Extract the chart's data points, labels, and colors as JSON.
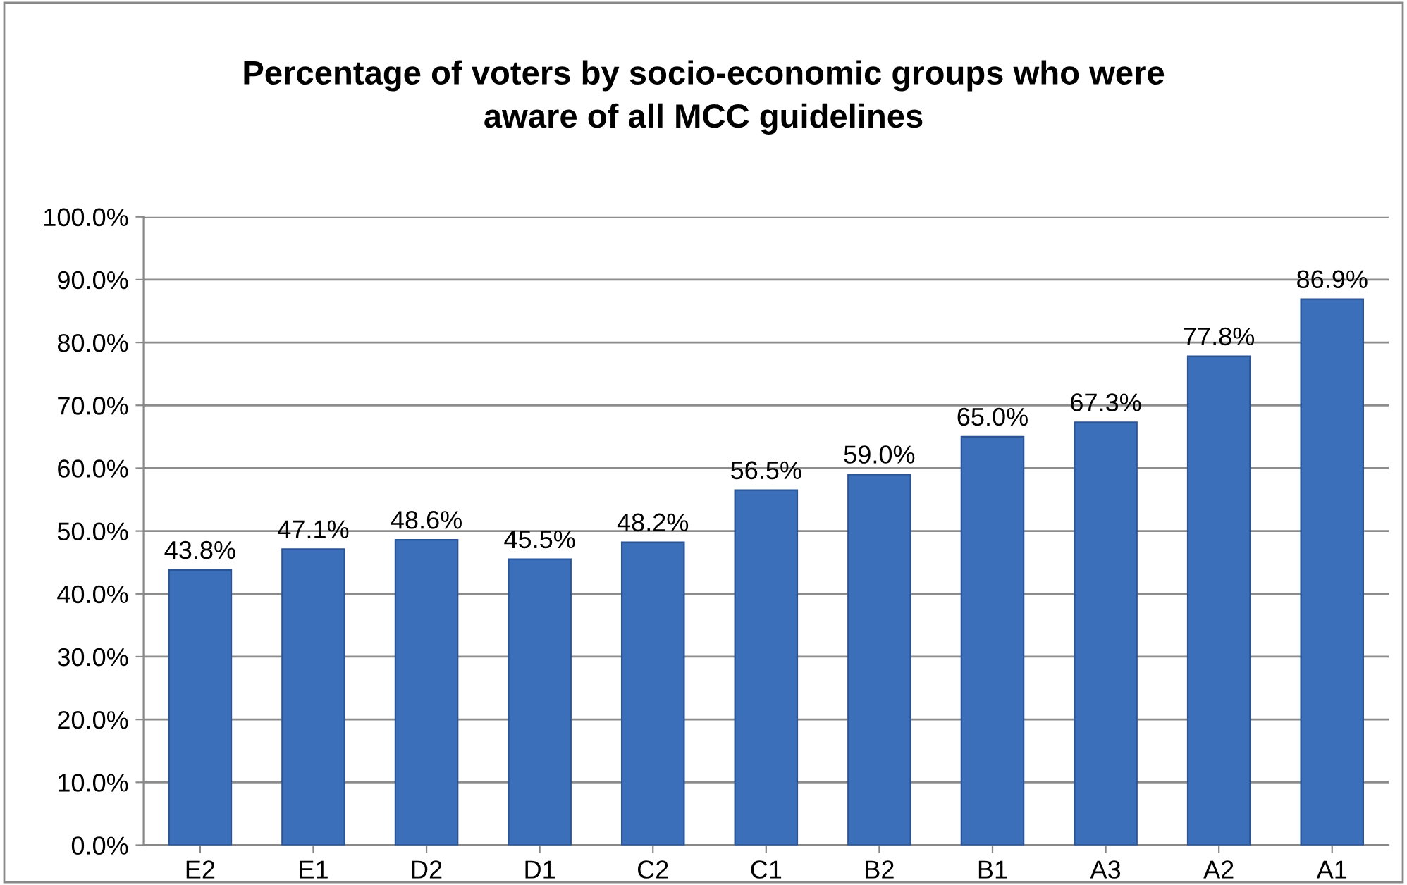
{
  "chart_data": {
    "type": "bar",
    "title": "Percentage of voters by socio-economic groups who were\naware of all MCC guidelines",
    "categories": [
      "E2",
      "E1",
      "D2",
      "D1",
      "C2",
      "C1",
      "B2",
      "B1",
      "A3",
      "A2",
      "A1"
    ],
    "values": [
      43.8,
      47.1,
      48.6,
      45.5,
      48.2,
      56.5,
      59.0,
      65.0,
      67.3,
      77.8,
      86.9
    ],
    "value_labels": [
      "43.8%",
      "47.1%",
      "48.6%",
      "45.5%",
      "48.2%",
      "56.5%",
      "59.0%",
      "65.0%",
      "67.3%",
      "77.8%",
      "86.9%"
    ],
    "color": "#3b6fba",
    "ylim": [
      0,
      100
    ],
    "yticks": [
      {
        "value": 0,
        "label": "0.0%"
      },
      {
        "value": 10,
        "label": "10.0%"
      },
      {
        "value": 20,
        "label": "20.0%"
      },
      {
        "value": 30,
        "label": "30.0%"
      },
      {
        "value": 40,
        "label": "40.0%"
      },
      {
        "value": 50,
        "label": "50.0%"
      },
      {
        "value": 60,
        "label": "60.0%"
      },
      {
        "value": 70,
        "label": "70.0%"
      },
      {
        "value": 80,
        "label": "80.0%"
      },
      {
        "value": 90,
        "label": "90.0%"
      },
      {
        "value": 100,
        "label": "100.0%"
      }
    ],
    "grid": "y",
    "legend": false
  }
}
